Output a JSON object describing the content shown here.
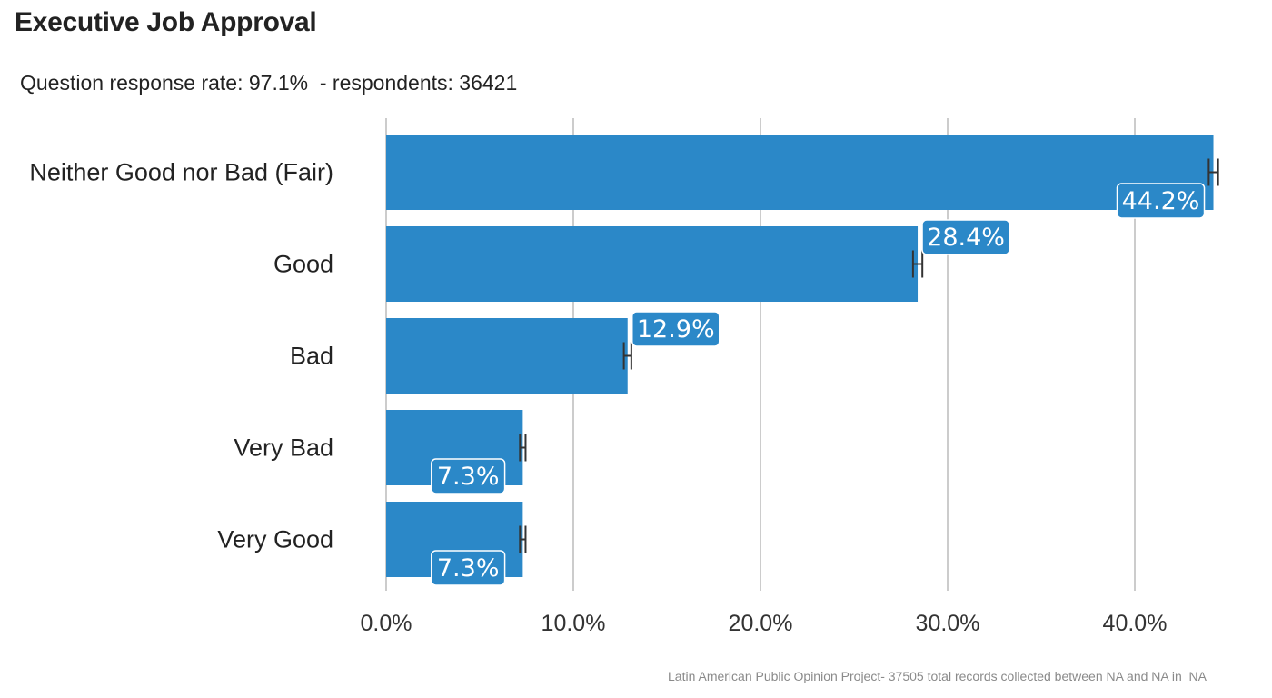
{
  "chart_data": {
    "type": "bar",
    "orientation": "horizontal",
    "title": "Executive Job Approval",
    "subtitle": "Question response rate: 97.1%  - respondents: 36421",
    "caption": "Latin American Public Opinion Project- 37505 total records collected between NA and NA in  NA",
    "categories": [
      "Neither Good nor Bad (Fair)",
      "Good",
      "Bad",
      "Very Bad",
      "Very Good"
    ],
    "values": [
      44.2,
      28.4,
      12.9,
      7.3,
      7.3
    ],
    "value_labels": [
      "44.2%",
      "28.4%",
      "12.9%",
      "7.3%",
      "7.3%"
    ],
    "error_margin": [
      0.25,
      0.25,
      0.2,
      0.15,
      0.15
    ],
    "xlim": [
      0,
      45
    ],
    "x_ticks": [
      0,
      10,
      20,
      30,
      40
    ],
    "x_tick_labels": [
      "0.0%",
      "10.0%",
      "20.0%",
      "30.0%",
      "40.0%"
    ],
    "grid": true,
    "bar_color": "#2b88c8",
    "grid_color": "#cccccc",
    "errorbar_color": "#333333",
    "label_text_color": "#ffffff"
  }
}
